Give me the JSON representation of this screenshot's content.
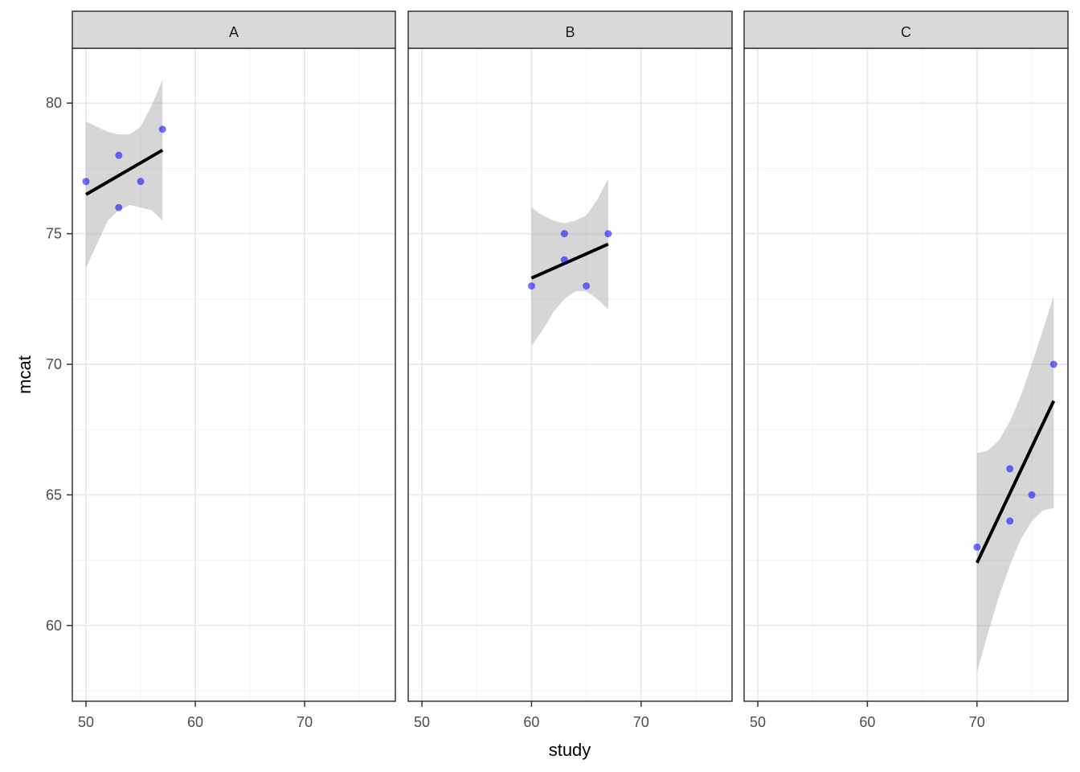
{
  "chart_data": {
    "type": "scatter",
    "title": "",
    "xlabel": "study",
    "ylabel": "mcat",
    "facet_variable": "group",
    "xlim": [
      48.75,
      78.3
    ],
    "ylim": [
      57.1,
      82.1
    ],
    "x_ticks": [
      50,
      60,
      70
    ],
    "y_ticks": [
      60,
      65,
      70,
      75,
      80
    ],
    "grid": true,
    "legend": "none",
    "point_color": "#4040e6",
    "smooth_line_color": "#000000",
    "ribbon_color": "#d0d0d0",
    "panels": [
      {
        "label": "A",
        "points": [
          {
            "x": 50,
            "y": 77
          },
          {
            "x": 53,
            "y": 78
          },
          {
            "x": 53,
            "y": 76
          },
          {
            "x": 55,
            "y": 77
          },
          {
            "x": 57,
            "y": 79
          }
        ],
        "fit": {
          "x0": 50,
          "y0": 76.5,
          "x1": 57,
          "y1": 78.2
        },
        "ribbon": {
          "x": [
            50,
            51,
            52,
            53,
            54,
            55,
            56,
            57
          ],
          "upper": [
            79.3,
            79.1,
            78.9,
            78.8,
            78.8,
            79.1,
            79.9,
            80.9
          ],
          "lower": [
            73.7,
            74.6,
            75.5,
            75.9,
            76.1,
            76.0,
            75.9,
            75.5
          ]
        }
      },
      {
        "label": "B",
        "points": [
          {
            "x": 60,
            "y": 73
          },
          {
            "x": 63,
            "y": 75
          },
          {
            "x": 63,
            "y": 74
          },
          {
            "x": 65,
            "y": 73
          },
          {
            "x": 67,
            "y": 75
          }
        ],
        "fit": {
          "x0": 60,
          "y0": 73.3,
          "x1": 67,
          "y1": 74.6
        },
        "ribbon": {
          "x": [
            60,
            61,
            62,
            63,
            64,
            65,
            66,
            67
          ],
          "upper": [
            76.0,
            75.7,
            75.5,
            75.4,
            75.5,
            75.7,
            76.3,
            77.1
          ],
          "lower": [
            70.7,
            71.3,
            72.0,
            72.5,
            72.8,
            72.8,
            72.5,
            72.1
          ]
        }
      },
      {
        "label": "C",
        "points": [
          {
            "x": 70,
            "y": 63
          },
          {
            "x": 73,
            "y": 66
          },
          {
            "x": 73,
            "y": 64
          },
          {
            "x": 75,
            "y": 65
          },
          {
            "x": 77,
            "y": 70
          }
        ],
        "fit": {
          "x0": 70,
          "y0": 62.4,
          "x1": 77,
          "y1": 68.6
        },
        "ribbon": {
          "x": [
            70,
            71,
            72,
            73,
            74,
            75,
            76,
            77
          ],
          "upper": [
            66.6,
            66.7,
            67.1,
            67.8,
            68.8,
            70.0,
            71.3,
            72.6
          ],
          "lower": [
            58.2,
            59.7,
            61.1,
            62.3,
            63.3,
            64.0,
            64.4,
            64.5
          ]
        }
      }
    ]
  }
}
